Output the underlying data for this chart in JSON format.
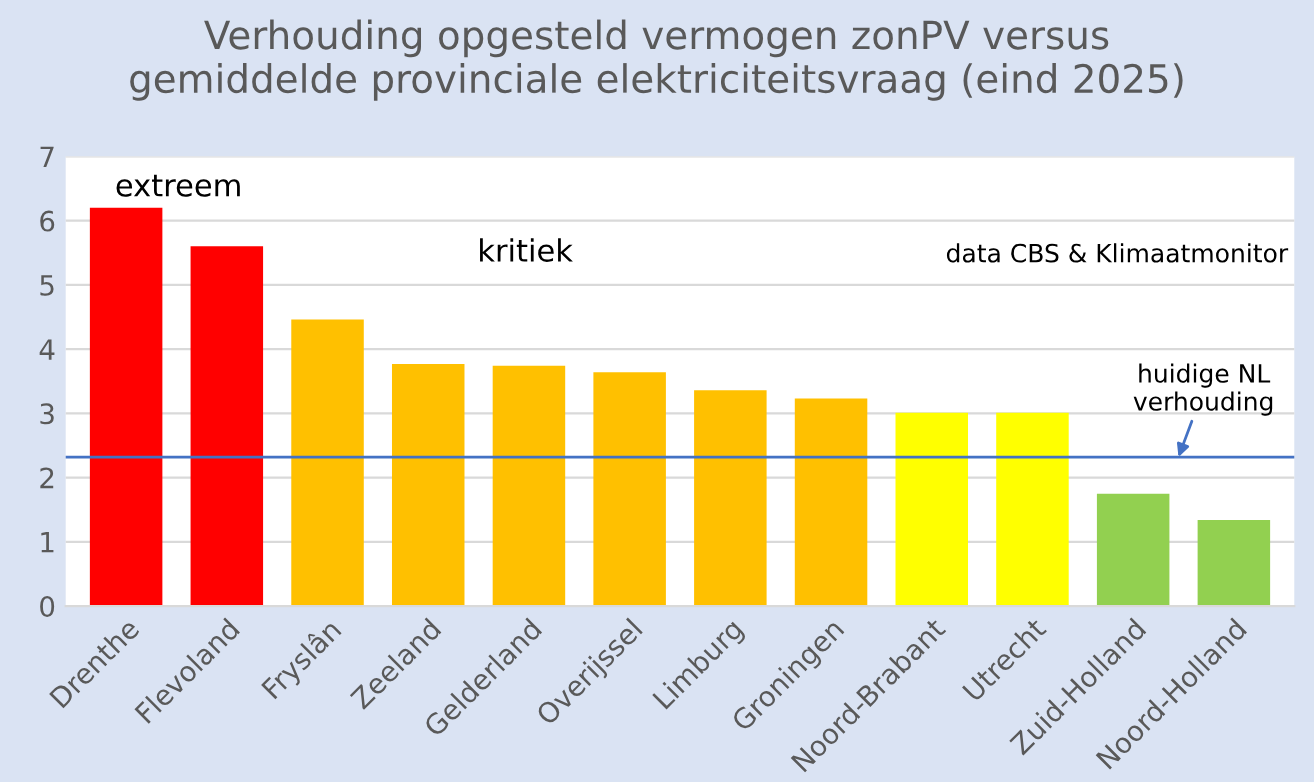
{
  "chart_data": {
    "type": "bar",
    "title": "Verhouding opgesteld vermogen zonPV versus\ngemiddelde provinciale elektriciteitsvraag (eind 2025)",
    "categories": [
      "Drenthe",
      "Flevoland",
      "Fryslân",
      "Zeeland",
      "Gelderland",
      "Overijssel",
      "Limburg",
      "Groningen",
      "Noord-Brabant",
      "Utrecht",
      "Zuid-Holland",
      "Noord-Holland"
    ],
    "values": [
      6.2,
      5.6,
      4.46,
      3.77,
      3.74,
      3.64,
      3.36,
      3.23,
      3.01,
      3.01,
      1.75,
      1.34
    ],
    "colors": [
      "#ff0000",
      "#ff0000",
      "#ffc000",
      "#ffc000",
      "#ffc000",
      "#ffc000",
      "#ffc000",
      "#ffc000",
      "#ffff00",
      "#ffff00",
      "#92d050",
      "#92d050"
    ],
    "ylim": [
      0,
      7
    ],
    "yticks": [
      0,
      1,
      2,
      3,
      4,
      5,
      6,
      7
    ],
    "grid": "y",
    "ref_lines": [
      {
        "axis": "y",
        "value": 2.32,
        "label": "huidige NL\nverhouding",
        "color": "#4472c4"
      }
    ],
    "annotations": [
      "extreem",
      "kritiek",
      "data CBS & Klimaatmonitor"
    ]
  }
}
